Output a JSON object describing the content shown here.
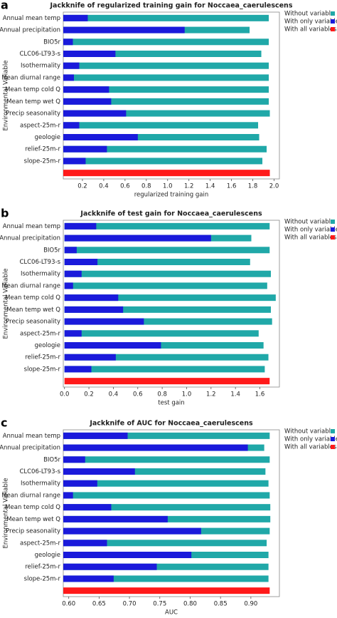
{
  "chart_data": [
    {
      "type": "bar",
      "panel": "a",
      "title": "Jackknife of regularized training gain for Noccaea_caerulescens",
      "x_label": "regularized training gain",
      "y_label": "Environmental Variable",
      "categories": [
        "Annual mean temp",
        "Annual precipitation",
        "BIO5r",
        "CLC06-LT93-s",
        "Isothermality",
        "Mean diurnal range",
        "Mean temp cold Q",
        "Mean temp wet Q",
        "Precip seasonality",
        "aspect-25m-r",
        "geologie",
        "relief-25m-r",
        "slope-25m-r",
        null
      ],
      "series": [
        {
          "name": "Without variable",
          "color": "#20a8a8",
          "values": [
            1.95,
            1.77,
            1.95,
            1.88,
            1.95,
            1.95,
            1.95,
            1.95,
            1.96,
            1.85,
            1.86,
            1.93,
            1.89,
            null
          ]
        },
        {
          "name": "With only variable",
          "color": "#1a1adb",
          "values": [
            0.25,
            1.16,
            0.11,
            0.51,
            0.17,
            0.12,
            0.45,
            0.47,
            0.61,
            0.17,
            0.72,
            0.43,
            0.23,
            null
          ]
        },
        {
          "name": "With all variables",
          "color": "#ff1a1a",
          "values": [
            null,
            null,
            null,
            null,
            null,
            null,
            null,
            null,
            null,
            null,
            null,
            null,
            null,
            1.96
          ]
        }
      ],
      "xlim": [
        0.02,
        2.05
      ],
      "xticks": [
        0.2,
        0.4,
        0.6,
        0.8,
        {
          "value": 1,
          "label": "1.0"
        },
        1.2,
        1.4,
        1.6,
        1.8,
        {
          "value": 2,
          "label": "2.0"
        }
      ],
      "orientation": "horizontal",
      "legend": "right"
    },
    {
      "type": "bar",
      "panel": "b",
      "title": "Jackknife of test gain for Noccaea_caerulescens",
      "x_label": "test gain",
      "y_label": "Environmental Variable",
      "categories": [
        "Annual mean temp",
        "Annual precipitation",
        "BIO5r",
        "CLC06-LT93-s",
        "Isothermality",
        "Mean diurnal range",
        "Mean temp cold Q",
        "Mean temp wet Q",
        "Precip seasonality",
        "aspect-25m-r",
        "geologie",
        "relief-25m-r",
        "slope-25m-r",
        null
      ],
      "series": [
        {
          "name": "Without variable",
          "color": "#20a8a8",
          "values": [
            1.68,
            1.53,
            1.68,
            1.52,
            1.69,
            1.66,
            1.73,
            1.69,
            1.7,
            1.59,
            1.63,
            1.67,
            1.64,
            null
          ]
        },
        {
          "name": "With only variable",
          "color": "#1a1adb",
          "values": [
            0.26,
            1.2,
            0.1,
            0.27,
            0.14,
            0.07,
            0.44,
            0.48,
            0.65,
            0.14,
            0.79,
            0.42,
            0.22,
            null
          ]
        },
        {
          "name": "With all variables",
          "color": "#ff1a1a",
          "values": [
            null,
            null,
            null,
            null,
            null,
            null,
            null,
            null,
            null,
            null,
            null,
            null,
            null,
            1.68
          ]
        }
      ],
      "xlim": [
        -0.01,
        1.76
      ],
      "xticks": [
        {
          "value": 0,
          "label": "0.0"
        },
        0.2,
        0.4,
        0.6,
        0.8,
        {
          "value": 1,
          "label": "1.0"
        },
        1.2,
        1.4,
        1.6
      ],
      "orientation": "horizontal",
      "legend": "right"
    },
    {
      "type": "bar",
      "panel": "c",
      "title": "Jackknife of AUC for Noccaea_caerulescens",
      "x_label": "AUC",
      "y_label": "Environmental Variable",
      "categories": [
        "Annual mean temp",
        "Annual precipitation",
        "BIO5r",
        "CLC06-LT93-s",
        "Isothermality",
        "Mean diurnal range",
        "Mean temp cold Q",
        "Mean temp wet Q",
        "Precip seasonality",
        "aspect-25m-r",
        "geologie",
        "relief-25m-r",
        "slope-25m-r",
        null
      ],
      "series": [
        {
          "name": "Without variable",
          "color": "#20a8a8",
          "values": [
            0.931,
            0.922,
            0.931,
            0.924,
            0.929,
            0.931,
            0.932,
            0.932,
            0.931,
            0.926,
            0.929,
            0.929,
            0.929,
            null
          ]
        },
        {
          "name": "With only variable",
          "color": "#1a1adb",
          "values": [
            0.697,
            0.895,
            0.627,
            0.709,
            0.647,
            0.607,
            0.67,
            0.763,
            0.818,
            0.663,
            0.802,
            0.745,
            0.674,
            null
          ]
        },
        {
          "name": "With all variables",
          "color": "#ff1a1a",
          "values": [
            null,
            null,
            null,
            null,
            null,
            null,
            null,
            null,
            null,
            null,
            null,
            null,
            null,
            0.931
          ]
        }
      ],
      "xlim": [
        0.591,
        0.947
      ],
      "xticks": [
        {
          "value": 0.6,
          "label": "0.60"
        },
        0.65,
        {
          "value": 0.7,
          "label": "0.70"
        },
        0.75,
        {
          "value": 0.8,
          "label": "0.80"
        },
        0.85,
        {
          "value": 0.9,
          "label": "0.90"
        }
      ],
      "orientation": "horizontal",
      "legend": "right"
    }
  ]
}
